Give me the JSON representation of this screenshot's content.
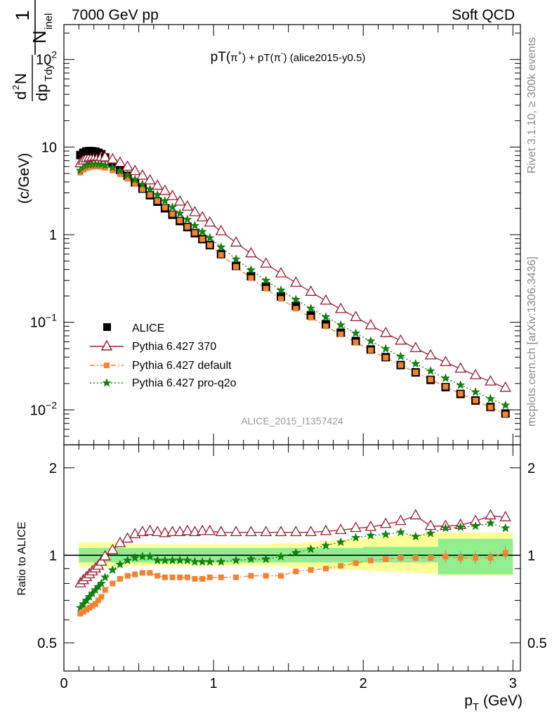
{
  "header": {
    "left": "7000 GeV pp",
    "right": "Soft QCD"
  },
  "side_labels": {
    "rivet": "Rivet 3.1.10, ≥ 300k events",
    "mcplots": "mcplots.cern.ch [arXiv:1306.3436]"
  },
  "watermark": "ALICE_2015_I1357424",
  "ylabel_upper": {
    "one": "1",
    "n": "N",
    "n_sub": "inel",
    "d2n_d": "d",
    "d2n_sup": "2",
    "d2n_n": "N",
    "dp": "dp",
    "dp_sub": "Tdy",
    "unit": "(c/GeV)"
  },
  "ylabel_lower": "Ratio to ALICE",
  "xlabel": {
    "p": "p",
    "sub": "T",
    "unit": "(GeV)"
  },
  "colors": {
    "alice": "#000000",
    "p370": "#9b1b30",
    "pdefault": "#f58231",
    "pq2o": "#0a8a0a",
    "band_inner": "#90ee90",
    "band_outer": "#ffff99"
  },
  "chart_data": [
    {
      "type": "scatter",
      "title": "pT(π⁺) + pT(π⁻) (alice2015-y0.5)",
      "title_parts": {
        "a": "pT(",
        "a_sym": "π",
        "a_sup": "+",
        "b": ") + pT(",
        "b_sym": "π",
        "b_sup": "-",
        "c": ") (alice2015-y0.5)"
      },
      "xlim": [
        0,
        3.05
      ],
      "ylim": [
        0.004,
        250
      ],
      "yscale": "log",
      "yticks": [
        {
          "v": 0.01,
          "base": "10",
          "exp": "−2"
        },
        {
          "v": 0.1,
          "base": "10",
          "exp": "−1"
        },
        {
          "v": 1,
          "base": "1",
          "exp": ""
        },
        {
          "v": 10,
          "base": "10",
          "exp": ""
        },
        {
          "v": 100,
          "base": "10",
          "exp": "2"
        }
      ],
      "x": [
        0.11,
        0.13,
        0.15,
        0.17,
        0.19,
        0.21,
        0.23,
        0.25,
        0.275,
        0.325,
        0.375,
        0.425,
        0.475,
        0.525,
        0.575,
        0.625,
        0.675,
        0.725,
        0.775,
        0.825,
        0.875,
        0.925,
        0.975,
        1.05,
        1.15,
        1.25,
        1.35,
        1.45,
        1.55,
        1.65,
        1.75,
        1.85,
        1.95,
        2.05,
        2.15,
        2.25,
        2.35,
        2.45,
        2.55,
        2.65,
        2.75,
        2.85,
        2.95
      ],
      "series": [
        {
          "name": "ALICE",
          "marker": "square",
          "values": [
            8.1,
            8.6,
            8.9,
            9.0,
            8.95,
            8.85,
            8.6,
            8.3,
            7.6,
            6.5,
            5.5,
            4.7,
            3.95,
            3.35,
            2.82,
            2.38,
            2.0,
            1.69,
            1.43,
            1.22,
            1.04,
            0.89,
            0.76,
            0.6,
            0.44,
            0.335,
            0.255,
            0.197,
            0.153,
            0.12,
            0.095,
            0.076,
            0.061,
            0.049,
            0.04,
            0.0325,
            0.0268,
            0.022,
            0.0182,
            0.0152,
            0.0128,
            0.0108,
            0.0091
          ]
        },
        {
          "name": "Pythia 6.427 370",
          "marker": "triangle-open",
          "line": "solid",
          "values": [
            6.5,
            7.0,
            7.4,
            7.6,
            7.7,
            7.75,
            7.75,
            7.7,
            7.6,
            7.2,
            6.6,
            5.95,
            5.3,
            4.7,
            4.15,
            3.6,
            3.15,
            2.75,
            2.38,
            2.08,
            1.8,
            1.57,
            1.37,
            1.09,
            0.81,
            0.61,
            0.465,
            0.36,
            0.282,
            0.222,
            0.176,
            0.141,
            0.114,
            0.092,
            0.075,
            0.0615,
            0.0505,
            0.0417,
            0.035,
            0.0294,
            0.0248,
            0.021,
            0.0178
          ]
        },
        {
          "name": "Pythia 6.427 default",
          "marker": "square-small",
          "line": "dashdot",
          "values": [
            5.1,
            5.5,
            5.75,
            5.9,
            5.95,
            6.0,
            6.0,
            5.95,
            5.8,
            5.4,
            4.9,
            4.35,
            3.8,
            3.3,
            2.85,
            2.42,
            2.04,
            1.72,
            1.45,
            1.23,
            1.05,
            0.89,
            0.76,
            0.59,
            0.43,
            0.32,
            0.242,
            0.185,
            0.143,
            0.113,
            0.09,
            0.073,
            0.059,
            0.0479,
            0.0394,
            0.0325,
            0.0268,
            0.0222,
            0.0184,
            0.0153,
            0.0128,
            0.0107,
            0.0089
          ]
        },
        {
          "name": "Pythia 6.427 pro-q2o",
          "marker": "star",
          "line": "dotted",
          "values": [
            5.4,
            5.8,
            6.1,
            6.25,
            6.3,
            6.35,
            6.35,
            6.3,
            6.2,
            5.85,
            5.35,
            4.8,
            4.25,
            3.75,
            3.3,
            2.85,
            2.43,
            2.06,
            1.75,
            1.49,
            1.27,
            1.08,
            0.92,
            0.72,
            0.525,
            0.395,
            0.3,
            0.232,
            0.182,
            0.144,
            0.115,
            0.093,
            0.075,
            0.061,
            0.0498,
            0.0408,
            0.0336,
            0.0278,
            0.023,
            0.0192,
            0.016,
            0.0134,
            0.0113
          ]
        }
      ]
    },
    {
      "type": "line",
      "ylabel": "Ratio to ALICE",
      "xlim": [
        0,
        3.05
      ],
      "ylim": [
        0.4,
        2.4
      ],
      "yscale": "log",
      "xticks": [
        0,
        1,
        2,
        3
      ],
      "yticks": [
        0.5,
        1,
        2
      ],
      "x": [
        0.11,
        0.13,
        0.15,
        0.17,
        0.19,
        0.21,
        0.23,
        0.25,
        0.275,
        0.325,
        0.375,
        0.425,
        0.475,
        0.525,
        0.575,
        0.625,
        0.675,
        0.725,
        0.775,
        0.825,
        0.875,
        0.925,
        0.975,
        1.05,
        1.15,
        1.25,
        1.35,
        1.45,
        1.55,
        1.65,
        1.75,
        1.85,
        1.95,
        2.05,
        2.15,
        2.25,
        2.35,
        2.45,
        2.55,
        2.65,
        2.75,
        2.85,
        2.95
      ],
      "bands": {
        "stat_low": [
          0.945,
          0.945,
          0.945,
          0.945,
          0.945,
          0.945,
          0.945,
          0.945,
          0.945,
          0.945,
          0.945,
          0.945,
          0.945,
          0.945,
          0.945,
          0.945,
          0.945,
          0.945,
          0.945,
          0.945,
          0.945,
          0.945,
          0.945,
          0.945,
          0.945,
          0.945,
          0.945,
          0.945,
          0.945,
          0.945,
          0.945,
          0.945,
          0.945,
          0.945,
          0.945,
          0.945,
          0.945,
          0.945,
          0.86,
          0.86,
          0.86,
          0.86,
          0.86
        ],
        "stat_high": [
          1.06,
          1.06,
          1.06,
          1.06,
          1.06,
          1.06,
          1.06,
          1.06,
          1.06,
          1.06,
          1.06,
          1.06,
          1.06,
          1.06,
          1.06,
          1.06,
          1.06,
          1.06,
          1.06,
          1.06,
          1.06,
          1.06,
          1.06,
          1.06,
          1.06,
          1.06,
          1.06,
          1.06,
          1.06,
          1.06,
          1.06,
          1.06,
          1.06,
          1.07,
          1.07,
          1.07,
          1.07,
          1.07,
          1.14,
          1.14,
          1.14,
          1.14,
          1.14
        ],
        "syst_low": [
          0.91,
          0.91,
          0.91,
          0.91,
          0.91,
          0.91,
          0.91,
          0.91,
          0.91,
          0.91,
          0.92,
          0.92,
          0.92,
          0.92,
          0.92,
          0.92,
          0.92,
          0.92,
          0.92,
          0.92,
          0.92,
          0.92,
          0.92,
          0.92,
          0.92,
          0.92,
          0.92,
          0.915,
          0.91,
          0.905,
          0.9,
          0.895,
          0.89,
          0.885,
          0.88,
          0.875,
          0.87,
          0.865,
          0.85,
          0.85,
          0.85,
          0.85,
          0.85
        ],
        "syst_high": [
          1.11,
          1.11,
          1.11,
          1.11,
          1.11,
          1.11,
          1.11,
          1.11,
          1.11,
          1.11,
          1.09,
          1.09,
          1.09,
          1.09,
          1.09,
          1.09,
          1.09,
          1.09,
          1.09,
          1.09,
          1.09,
          1.09,
          1.09,
          1.09,
          1.09,
          1.09,
          1.09,
          1.1,
          1.1,
          1.11,
          1.12,
          1.13,
          1.14,
          1.15,
          1.16,
          1.17,
          1.18,
          1.19,
          1.2,
          1.2,
          1.2,
          1.2,
          1.2
        ]
      },
      "series": [
        {
          "name": "Pythia 6.427 370",
          "values": [
            0.8,
            0.82,
            0.84,
            0.86,
            0.88,
            0.9,
            0.92,
            0.95,
            0.99,
            1.04,
            1.1,
            1.14,
            1.18,
            1.2,
            1.21,
            1.2,
            1.19,
            1.2,
            1.2,
            1.21,
            1.2,
            1.21,
            1.21,
            1.2,
            1.2,
            1.2,
            1.2,
            1.2,
            1.2,
            1.2,
            1.21,
            1.22,
            1.24,
            1.25,
            1.28,
            1.31,
            1.37,
            1.26,
            1.26,
            1.27,
            1.31,
            1.37,
            1.35
          ]
        },
        {
          "name": "Pythia 6.427 default",
          "values": [
            0.63,
            0.64,
            0.65,
            0.66,
            0.67,
            0.68,
            0.7,
            0.72,
            0.76,
            0.8,
            0.83,
            0.85,
            0.86,
            0.87,
            0.87,
            0.85,
            0.84,
            0.84,
            0.84,
            0.84,
            0.83,
            0.83,
            0.84,
            0.84,
            0.84,
            0.85,
            0.85,
            0.85,
            0.88,
            0.89,
            0.9,
            0.92,
            0.94,
            0.96,
            0.97,
            0.98,
            0.98,
            0.98,
            0.99,
            0.98,
            0.98,
            0.98,
            1.02
          ]
        },
        {
          "name": "Pythia 6.427 pro-q2o",
          "values": [
            0.66,
            0.68,
            0.7,
            0.72,
            0.74,
            0.76,
            0.78,
            0.8,
            0.84,
            0.89,
            0.93,
            0.96,
            0.98,
            0.99,
            0.99,
            0.96,
            0.96,
            0.96,
            0.96,
            0.96,
            0.95,
            0.95,
            0.95,
            0.95,
            0.96,
            0.97,
            0.97,
            0.99,
            1.02,
            1.05,
            1.08,
            1.11,
            1.15,
            1.17,
            1.18,
            1.2,
            1.16,
            1.19,
            1.24,
            1.25,
            1.26,
            1.29,
            1.24
          ]
        }
      ]
    }
  ]
}
